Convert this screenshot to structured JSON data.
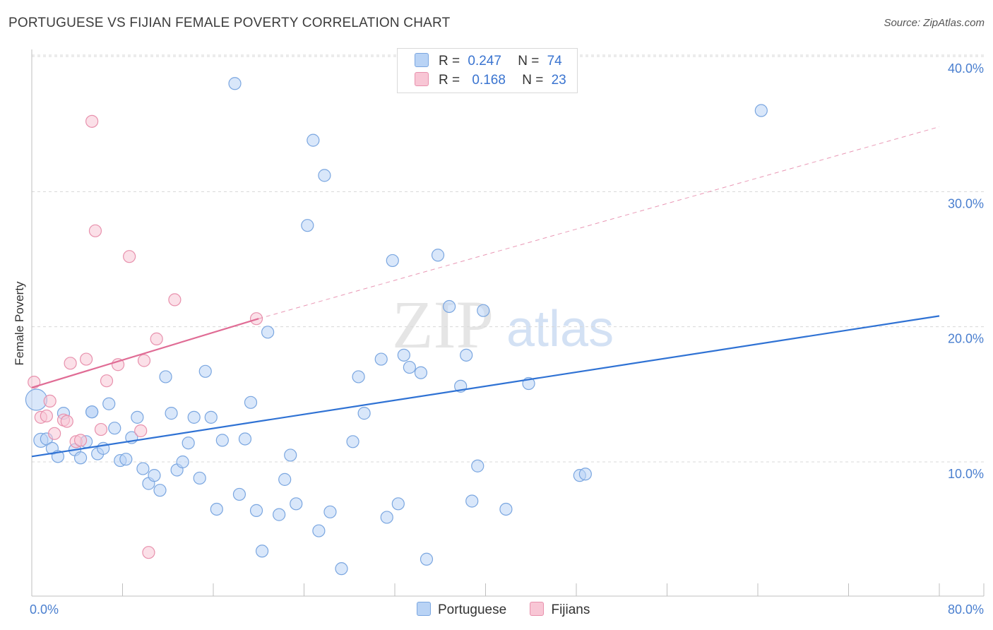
{
  "title": "PORTUGUESE VS FIJIAN FEMALE POVERTY CORRELATION CHART",
  "source": "Source: ZipAtlas.com",
  "watermark": {
    "zip": "ZIP",
    "atlas": "atlas"
  },
  "legend": {
    "rows": [
      {
        "r_label": "R =",
        "r_value": "0.247",
        "n_label": "N =",
        "n_value": "74"
      },
      {
        "r_label": "R =",
        "r_value": "0.168",
        "n_label": "N =",
        "n_value": "23"
      }
    ]
  },
  "colors": {
    "portuguese_fill": "#b9d3f5",
    "portuguese_stroke": "#7aa6e0",
    "portuguese_line": "#2f72d4",
    "fijians_fill": "#f8c6d5",
    "fijians_stroke": "#e891ad",
    "fijians_line": "#e06c95",
    "tick_text": "#4a7fcf",
    "grid": "#d8d8d8"
  },
  "chart_data": {
    "type": "scatter",
    "title": "PORTUGUESE VS FIJIAN FEMALE POVERTY CORRELATION CHART",
    "xlabel": "",
    "ylabel": "Female Poverty",
    "xlim": [
      0,
      80
    ],
    "ylim": [
      0,
      42
    ],
    "x_tick_labels": [
      "0.0%",
      "80.0%"
    ],
    "y_ticks": [
      10,
      20,
      30,
      40
    ],
    "y_tick_labels": [
      "10.0%",
      "20.0%",
      "30.0%",
      "40.0%"
    ],
    "grid": true,
    "legend_position": "bottom",
    "series": [
      {
        "name": "Portuguese",
        "r": 0.247,
        "n": 74,
        "trend": {
          "x": [
            0,
            80
          ],
          "y": [
            10.4,
            20.8
          ]
        },
        "points": [
          [
            0.4,
            14.6
          ],
          [
            0.8,
            11.6
          ],
          [
            1.3,
            11.7
          ],
          [
            1.8,
            11.0
          ],
          [
            2.3,
            10.4
          ],
          [
            2.8,
            13.6
          ],
          [
            3.8,
            10.9
          ],
          [
            4.3,
            10.3
          ],
          [
            4.8,
            11.5
          ],
          [
            5.3,
            13.7
          ],
          [
            5.8,
            10.6
          ],
          [
            6.3,
            11.0
          ],
          [
            6.8,
            14.3
          ],
          [
            7.3,
            12.5
          ],
          [
            7.8,
            10.1
          ],
          [
            8.3,
            10.2
          ],
          [
            8.8,
            11.8
          ],
          [
            9.3,
            13.3
          ],
          [
            9.8,
            9.5
          ],
          [
            10.3,
            8.4
          ],
          [
            10.8,
            9.0
          ],
          [
            11.3,
            7.9
          ],
          [
            11.8,
            16.3
          ],
          [
            12.3,
            13.6
          ],
          [
            12.8,
            9.4
          ],
          [
            13.3,
            10.0
          ],
          [
            13.8,
            11.4
          ],
          [
            14.3,
            13.3
          ],
          [
            14.8,
            8.8
          ],
          [
            15.3,
            16.7
          ],
          [
            15.8,
            13.3
          ],
          [
            16.3,
            6.5
          ],
          [
            16.8,
            11.6
          ],
          [
            18.3,
            7.6
          ],
          [
            18.8,
            11.7
          ],
          [
            19.3,
            14.4
          ],
          [
            19.8,
            6.4
          ],
          [
            20.3,
            3.4
          ],
          [
            20.8,
            19.6
          ],
          [
            21.8,
            6.1
          ],
          [
            22.3,
            8.7
          ],
          [
            22.8,
            10.5
          ],
          [
            23.3,
            6.9
          ],
          [
            24.3,
            27.5
          ],
          [
            24.8,
            33.8
          ],
          [
            25.3,
            4.9
          ],
          [
            25.8,
            31.2
          ],
          [
            26.3,
            6.3
          ],
          [
            27.3,
            2.1
          ],
          [
            28.3,
            11.5
          ],
          [
            28.8,
            16.3
          ],
          [
            29.3,
            13.6
          ],
          [
            30.8,
            17.6
          ],
          [
            31.3,
            5.9
          ],
          [
            31.8,
            24.9
          ],
          [
            32.3,
            6.9
          ],
          [
            32.8,
            17.9
          ],
          [
            33.3,
            17.0
          ],
          [
            34.3,
            16.6
          ],
          [
            34.8,
            2.8
          ],
          [
            35.8,
            25.3
          ],
          [
            36.8,
            21.5
          ],
          [
            37.8,
            15.6
          ],
          [
            38.3,
            17.9
          ],
          [
            38.8,
            7.1
          ],
          [
            39.3,
            9.7
          ],
          [
            39.8,
            21.2
          ],
          [
            41.8,
            6.5
          ],
          [
            43.8,
            15.8
          ],
          [
            48.3,
            9.0
          ],
          [
            48.8,
            9.1
          ],
          [
            64.3,
            36.0
          ],
          [
            17.9,
            38.0
          ],
          [
            5.3,
            13.7
          ]
        ]
      },
      {
        "name": "Fijians",
        "r": 0.168,
        "n": 23,
        "trend": {
          "x": [
            0,
            20.0
          ],
          "y": [
            15.5,
            20.6
          ]
        },
        "trend_extended": {
          "x": [
            20.0,
            80
          ],
          "y": [
            20.6,
            34.8
          ]
        },
        "points": [
          [
            0.2,
            15.9
          ],
          [
            0.8,
            13.3
          ],
          [
            1.3,
            13.4
          ],
          [
            1.6,
            14.5
          ],
          [
            2.0,
            12.1
          ],
          [
            2.8,
            13.1
          ],
          [
            3.1,
            13.0
          ],
          [
            3.4,
            17.3
          ],
          [
            3.9,
            11.5
          ],
          [
            4.3,
            11.6
          ],
          [
            4.8,
            17.6
          ],
          [
            5.3,
            35.2
          ],
          [
            5.6,
            27.1
          ],
          [
            6.1,
            12.4
          ],
          [
            6.6,
            16.0
          ],
          [
            7.6,
            17.2
          ],
          [
            8.6,
            25.2
          ],
          [
            9.6,
            12.3
          ],
          [
            9.9,
            17.5
          ],
          [
            10.3,
            3.3
          ],
          [
            11.0,
            19.1
          ],
          [
            12.6,
            22.0
          ],
          [
            19.8,
            20.6
          ]
        ]
      }
    ]
  }
}
